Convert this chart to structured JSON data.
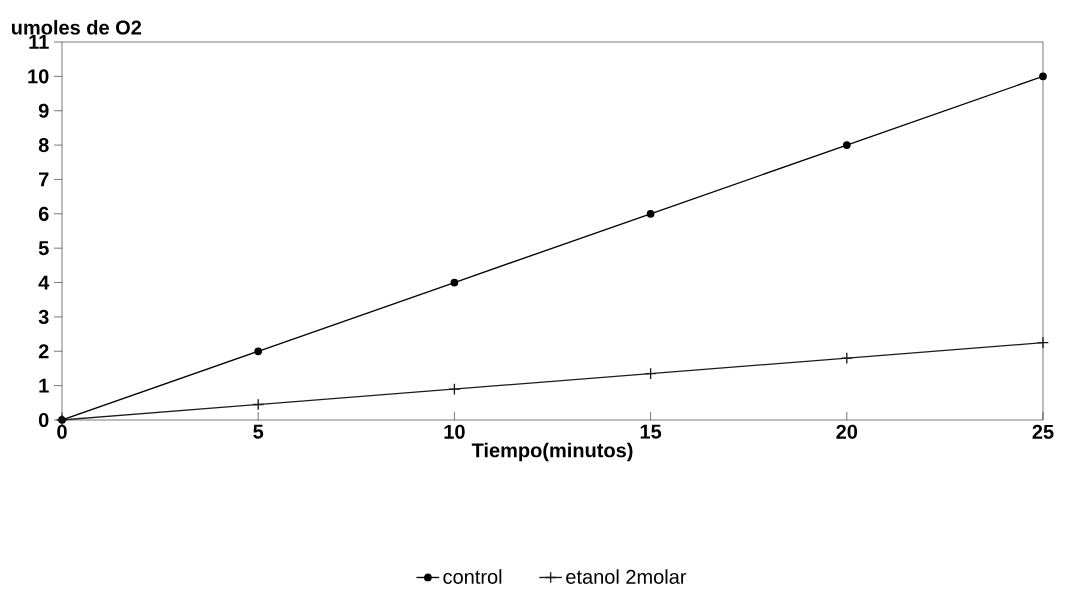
{
  "chart_data": {
    "type": "line",
    "xlabel": "Tiempo(minutos)",
    "ylabel": "umoles de O2",
    "x": [
      0,
      5,
      10,
      15,
      20,
      25
    ],
    "series": [
      {
        "name": "control",
        "color": "#000000",
        "marker": "circle",
        "values": [
          0,
          2,
          4,
          6,
          8,
          10
        ]
      },
      {
        "name": "etanol 2molar",
        "color": "#1a1a1a",
        "marker": "cross",
        "values": [
          0,
          0.45,
          0.9,
          1.35,
          1.8,
          2.25
        ]
      }
    ],
    "xlim": [
      0,
      25
    ],
    "ylim": [
      0,
      11
    ],
    "xticks": [
      0,
      5,
      10,
      15,
      20,
      25
    ],
    "yticks": [
      0,
      1,
      2,
      3,
      4,
      5,
      6,
      7,
      8,
      9,
      10,
      11
    ],
    "legend": "bottom",
    "grid": false,
    "line_style": "solid"
  }
}
